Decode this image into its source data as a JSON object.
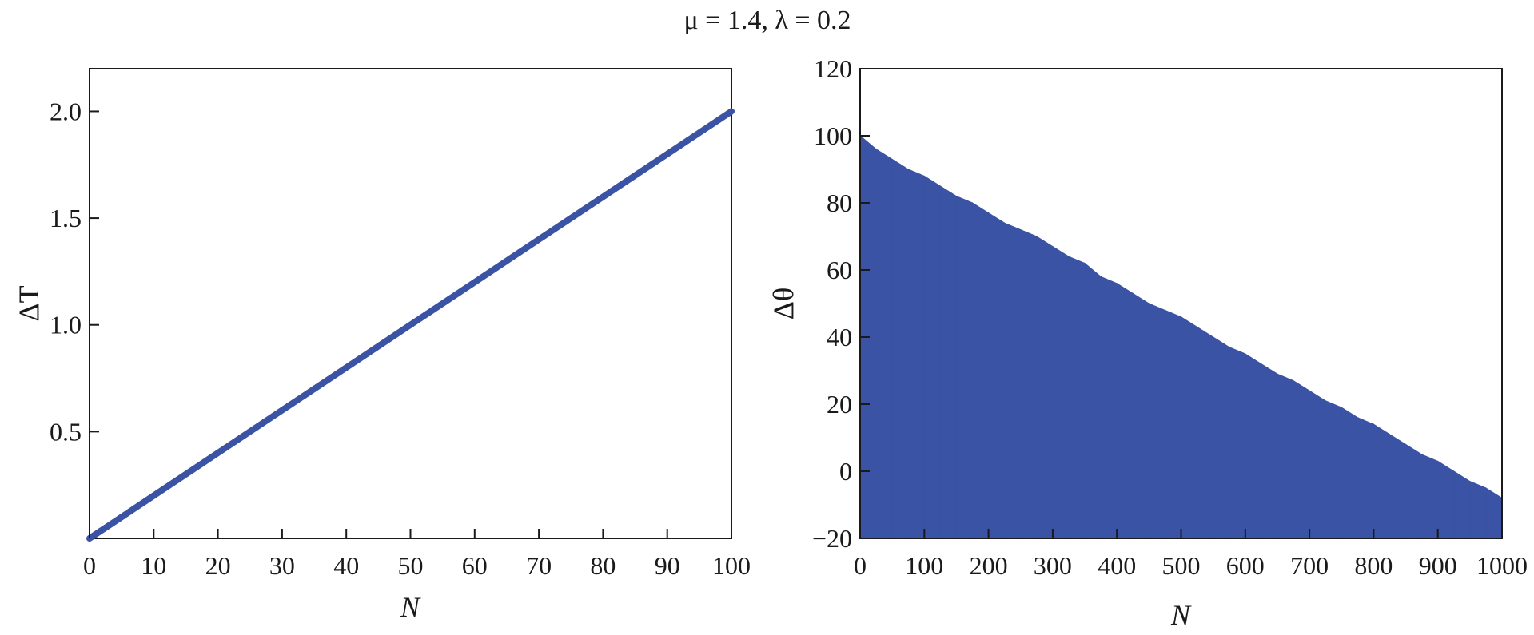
{
  "figure_title": "μ = 1.4, λ = 0.2",
  "colors": {
    "series": "#3a53a4",
    "axes": "#1a1a1a"
  },
  "chart_data": [
    {
      "type": "line",
      "xlabel": "N",
      "ylabel": "ΔT",
      "xlim": [
        0,
        100
      ],
      "ylim": [
        0,
        2.2
      ],
      "xticks": [
        0,
        10,
        20,
        30,
        40,
        50,
        60,
        70,
        80,
        90,
        100
      ],
      "xtick_labels": [
        "0",
        "10",
        "20",
        "30",
        "40",
        "50",
        "60",
        "70",
        "80",
        "90",
        "100"
      ],
      "yticks": [
        0.5,
        1.0,
        1.5,
        2.0
      ],
      "ytick_labels": [
        "0.5",
        "1.0",
        "1.5",
        "2.0"
      ],
      "grid": false,
      "series": [
        {
          "x": [
            0,
            10,
            20,
            30,
            40,
            50,
            60,
            70,
            80,
            90,
            100
          ],
          "y": [
            0.0,
            0.2,
            0.4,
            0.6,
            0.8,
            1.0,
            1.2,
            1.4,
            1.6,
            1.8,
            2.0
          ]
        }
      ]
    },
    {
      "type": "bar",
      "xlabel": "N",
      "ylabel": "Δθ",
      "xlim": [
        0,
        1000
      ],
      "ylim": [
        -20,
        120
      ],
      "xticks": [
        0,
        100,
        200,
        300,
        400,
        500,
        600,
        700,
        800,
        900,
        1000
      ],
      "xtick_labels": [
        "0",
        "100",
        "200",
        "300",
        "400",
        "500",
        "600",
        "700",
        "800",
        "900",
        "1000"
      ],
      "yticks": [
        -20,
        0,
        20,
        40,
        60,
        80,
        100,
        120
      ],
      "ytick_labels": [
        "−20",
        "0",
        "20",
        "40",
        "60",
        "80",
        "100",
        "120"
      ],
      "grid": false,
      "series": [
        {
          "x": [
            0,
            25,
            50,
            75,
            100,
            125,
            150,
            175,
            200,
            225,
            250,
            275,
            300,
            325,
            350,
            375,
            400,
            425,
            450,
            475,
            500,
            525,
            550,
            575,
            600,
            625,
            650,
            675,
            700,
            725,
            750,
            775,
            800,
            825,
            850,
            875,
            900,
            925,
            950,
            975,
            1000
          ],
          "y": [
            100,
            96,
            93,
            90,
            88,
            85,
            82,
            80,
            77,
            74,
            72,
            70,
            67,
            64,
            62,
            58,
            56,
            53,
            50,
            48,
            46,
            43,
            40,
            37,
            35,
            32,
            29,
            27,
            24,
            21,
            19,
            16,
            14,
            11,
            8,
            5,
            3,
            0,
            -3,
            -5,
            -8
          ]
        }
      ]
    }
  ]
}
